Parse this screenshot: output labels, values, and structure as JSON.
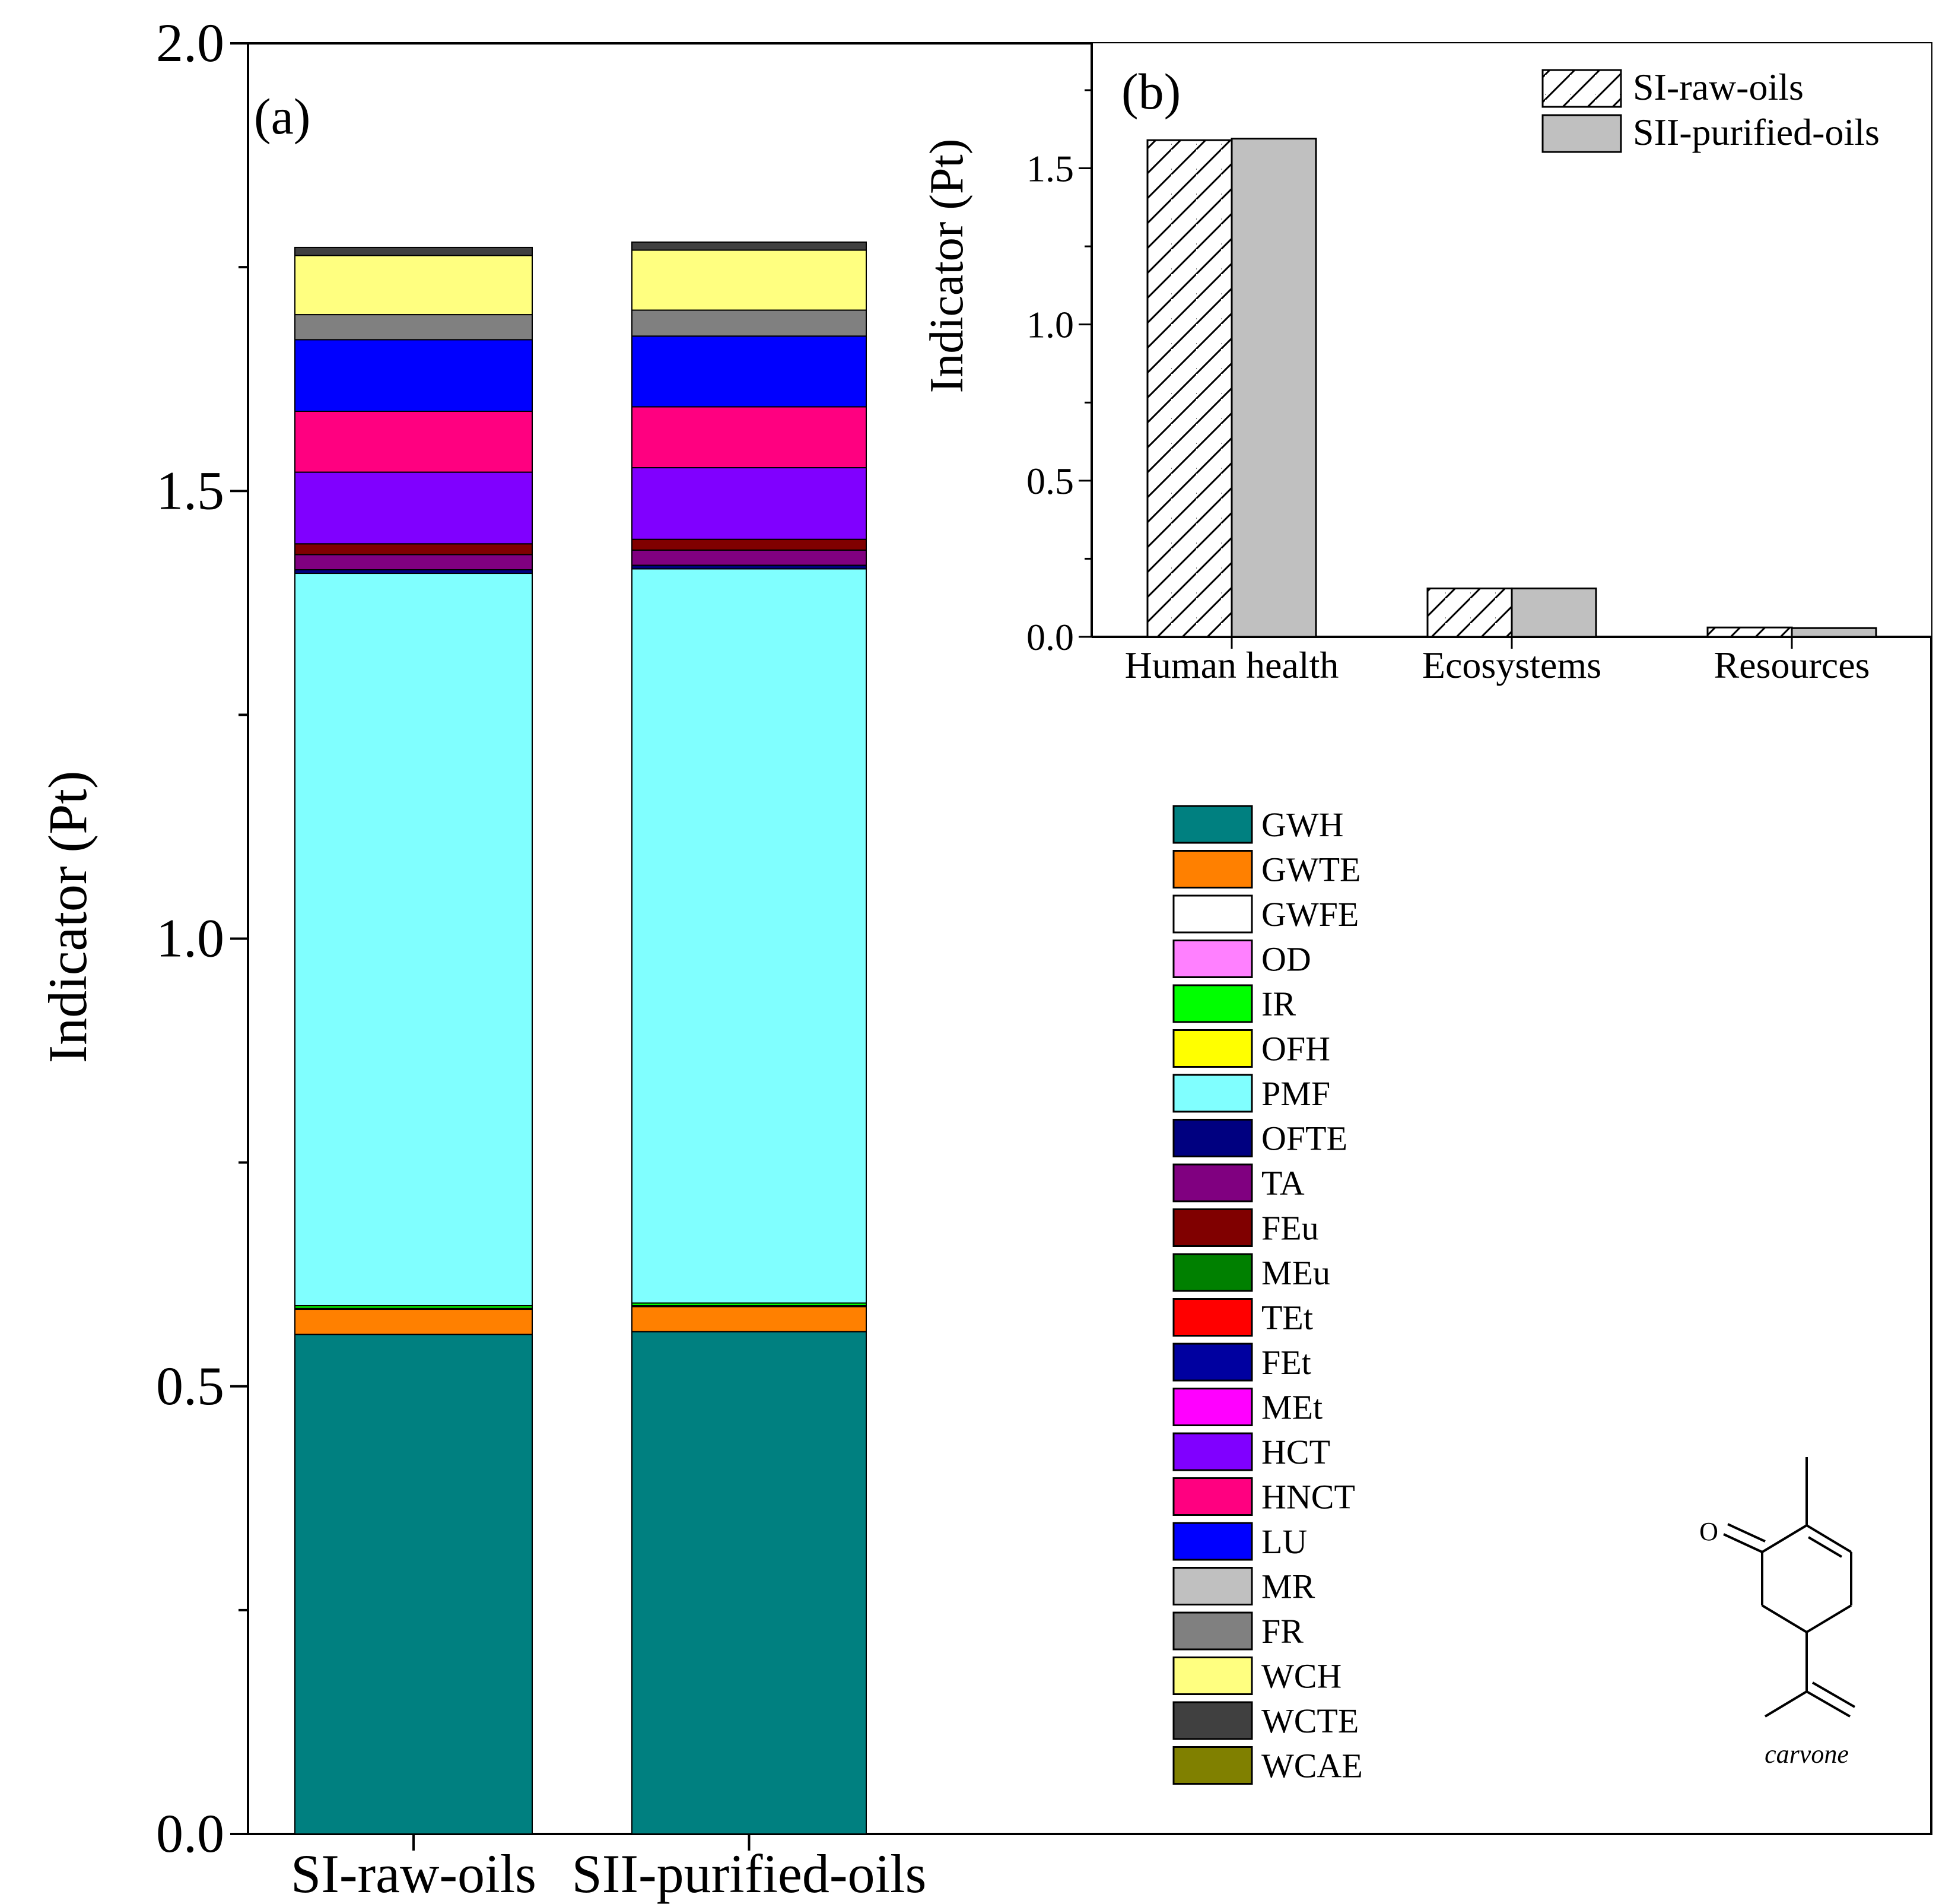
{
  "chart_data": [
    {
      "panel": "(a)",
      "type": "stacked-bar",
      "ylabel": "Indicator (Pt)",
      "xlabel": "",
      "ylim": [
        0,
        2.0
      ],
      "yticks": [
        "0.0",
        "0.5",
        "1.0",
        "1.5",
        "2.0"
      ],
      "ytick_values": [
        0,
        0.5,
        1.0,
        1.5,
        2.0
      ],
      "categories": [
        "SI-raw-oils",
        "SII-purified-oils"
      ],
      "series": [
        {
          "name": "GWH",
          "color": "#008080",
          "values": [
            0.558,
            0.561
          ]
        },
        {
          "name": "GWTE",
          "color": "#FF8000",
          "values": [
            0.028,
            0.028
          ]
        },
        {
          "name": "GWFE",
          "color": "#FFFFFF",
          "values": [
            0.001,
            0.001
          ]
        },
        {
          "name": "OD",
          "color": "#FF80FF",
          "values": [
            0.0,
            0.0
          ]
        },
        {
          "name": "IR",
          "color": "#00FF00",
          "values": [
            0.003,
            0.003
          ]
        },
        {
          "name": "OFH",
          "color": "#FFFF00",
          "values": [
            0.0,
            0.0
          ]
        },
        {
          "name": "PMF",
          "color": "#80FFFF",
          "values": [
            0.818,
            0.82
          ]
        },
        {
          "name": "OFTE",
          "color": "#000080",
          "values": [
            0.004,
            0.004
          ]
        },
        {
          "name": "TA",
          "color": "#800080",
          "values": [
            0.017,
            0.017
          ]
        },
        {
          "name": "FEu",
          "color": "#800000",
          "values": [
            0.012,
            0.012
          ]
        },
        {
          "name": "MEu",
          "color": "#008000",
          "values": [
            0.0,
            0.0
          ]
        },
        {
          "name": "TEt",
          "color": "#FF0000",
          "values": [
            0.0,
            0.0
          ]
        },
        {
          "name": "FEt",
          "color": "#0000A0",
          "values": [
            0.0,
            0.0
          ]
        },
        {
          "name": "MEt",
          "color": "#FF00FF",
          "values": [
            0.0,
            0.0
          ]
        },
        {
          "name": "HCT",
          "color": "#8000FF",
          "values": [
            0.08,
            0.08
          ]
        },
        {
          "name": "HNCT",
          "color": "#FF0080",
          "values": [
            0.068,
            0.068
          ]
        },
        {
          "name": "LU",
          "color": "#0000FF",
          "values": [
            0.08,
            0.079
          ]
        },
        {
          "name": "MR",
          "color": "#C0C0C0",
          "values": [
            0.0,
            0.0
          ]
        },
        {
          "name": "FR",
          "color": "#808080",
          "values": [
            0.028,
            0.029
          ]
        },
        {
          "name": "WCH",
          "color": "#FFFF80",
          "values": [
            0.066,
            0.067
          ]
        },
        {
          "name": "WCTE",
          "color": "#404040",
          "values": [
            0.009,
            0.009
          ]
        },
        {
          "name": "WCAE",
          "color": "#808000",
          "values": [
            0.0,
            0.0
          ]
        }
      ]
    },
    {
      "panel": "(b)",
      "type": "bar",
      "ylabel": "Indicator (Pt)",
      "xlabel": "",
      "ylim": [
        0,
        1.9
      ],
      "yticks": [
        "0.0",
        "0.5",
        "1.0",
        "1.5"
      ],
      "ytick_values": [
        0,
        0.5,
        1.0,
        1.5
      ],
      "categories": [
        "Human health",
        "Ecosystems",
        "Resources"
      ],
      "series": [
        {
          "name": "SI-raw-oils",
          "pattern": "hatched",
          "values": [
            1.59,
            0.155,
            0.03
          ]
        },
        {
          "name": "SII-purified-oils",
          "color": "#C0C0C0",
          "values": [
            1.595,
            0.155,
            0.028
          ]
        }
      ]
    }
  ],
  "molecule": {
    "label": "carvone",
    "oxygen": "O"
  }
}
